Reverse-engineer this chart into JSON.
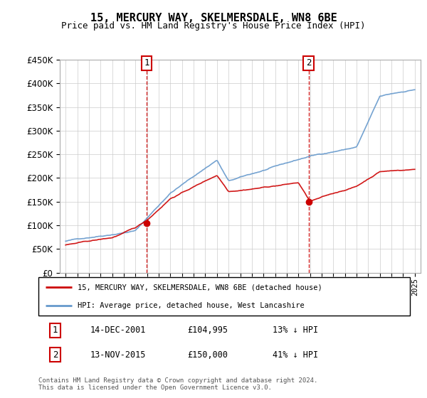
{
  "title": "15, MERCURY WAY, SKELMERSDALE, WN8 6BE",
  "subtitle": "Price paid vs. HM Land Registry's House Price Index (HPI)",
  "ylim": [
    0,
    450000
  ],
  "yticks": [
    0,
    50000,
    100000,
    150000,
    200000,
    250000,
    300000,
    350000,
    400000,
    450000
  ],
  "xstart": 1995,
  "xend": 2025,
  "sale1_year": 2001.95,
  "sale1_price": 104995,
  "sale1_label": "1",
  "sale2_year": 2015.87,
  "sale2_price": 150000,
  "sale2_label": "2",
  "red_color": "#cc0000",
  "blue_color": "#6699cc",
  "legend_entry1": "15, MERCURY WAY, SKELMERSDALE, WN8 6BE (detached house)",
  "legend_entry2": "HPI: Average price, detached house, West Lancashire",
  "table_row1": [
    "1",
    "14-DEC-2001",
    "£104,995",
    "13% ↓ HPI"
  ],
  "table_row2": [
    "2",
    "13-NOV-2015",
    "£150,000",
    "41% ↓ HPI"
  ],
  "footnote": "Contains HM Land Registry data © Crown copyright and database right 2024.\nThis data is licensed under the Open Government Licence v3.0.",
  "background_color": "#ffffff",
  "grid_color": "#cccccc"
}
